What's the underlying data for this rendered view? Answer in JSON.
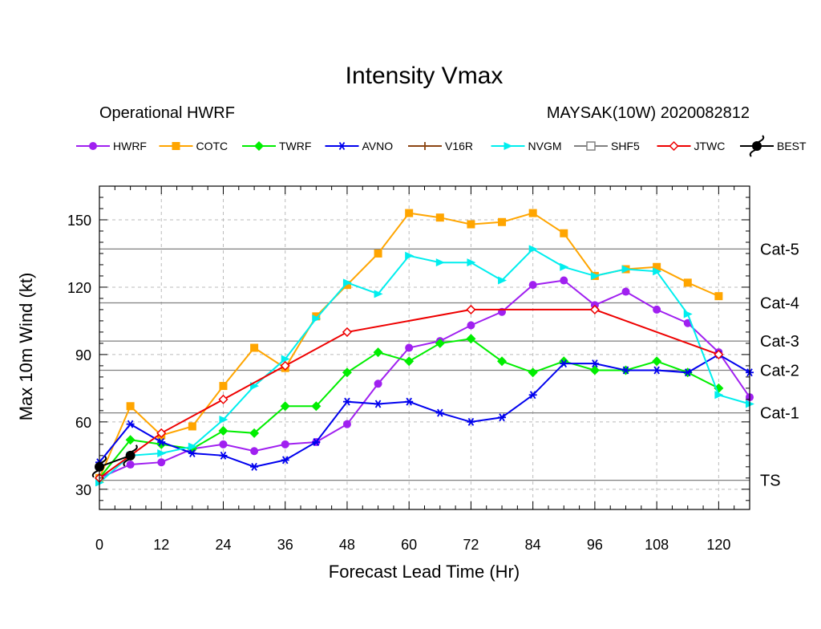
{
  "chart_data": {
    "type": "line",
    "title": "Intensity Vmax",
    "subtitle_left": "Operational HWRF",
    "subtitle_right": "MAYSAK(10W) 2020082812",
    "xlabel": "Forecast Lead Time (Hr)",
    "ylabel": "Max 10m Wind (kt)",
    "xlim": [
      0,
      126
    ],
    "ylim": [
      21,
      165
    ],
    "x_ticks": [
      0,
      12,
      24,
      36,
      48,
      60,
      72,
      84,
      96,
      108,
      120
    ],
    "y_ticks": [
      30,
      60,
      90,
      120,
      150
    ],
    "grid": true,
    "legend_position": "top",
    "categories": [
      {
        "label": "TS",
        "threshold": 34
      },
      {
        "label": "Cat-1",
        "threshold": 64
      },
      {
        "label": "Cat-2",
        "threshold": 83
      },
      {
        "label": "Cat-3",
        "threshold": 96
      },
      {
        "label": "Cat-4",
        "threshold": 113
      },
      {
        "label": "Cat-5",
        "threshold": 137
      }
    ],
    "series": [
      {
        "name": "HWRF",
        "color": "#a020f0",
        "marker": "circle",
        "x": [
          0,
          6,
          12,
          18,
          24,
          30,
          36,
          42,
          48,
          54,
          60,
          66,
          72,
          78,
          84,
          90,
          96,
          102,
          108,
          114,
          120,
          126
        ],
        "y": [
          35,
          41,
          42,
          48,
          50,
          47,
          50,
          51,
          59,
          77,
          93,
          96,
          103,
          109,
          121,
          123,
          112,
          118,
          110,
          104,
          91,
          71
        ]
      },
      {
        "name": "COTC",
        "color": "#ffa500",
        "marker": "square",
        "x": [
          0,
          6,
          12,
          18,
          24,
          30,
          36,
          42,
          48,
          54,
          60,
          66,
          72,
          78,
          84,
          90,
          96,
          102,
          108,
          114,
          120
        ],
        "y": [
          35,
          67,
          54,
          58,
          76,
          93,
          84,
          107,
          121,
          135,
          153,
          151,
          148,
          149,
          153,
          144,
          125,
          128,
          129,
          122,
          116
        ]
      },
      {
        "name": "TWRF",
        "color": "#00ee00",
        "marker": "diamond",
        "x": [
          0,
          6,
          12,
          18,
          24,
          30,
          36,
          42,
          48,
          54,
          60,
          66,
          72,
          78,
          84,
          90,
          96,
          102,
          108,
          114,
          120
        ],
        "y": [
          35,
          52,
          50,
          48,
          56,
          55,
          67,
          67,
          82,
          91,
          87,
          95,
          97,
          87,
          82,
          87,
          83,
          83,
          87,
          82,
          75
        ]
      },
      {
        "name": "AVNO",
        "color": "#0000ee",
        "marker": "asterisk",
        "x": [
          0,
          6,
          12,
          18,
          24,
          30,
          36,
          42,
          48,
          54,
          60,
          66,
          72,
          78,
          84,
          90,
          96,
          102,
          108,
          114,
          120,
          126
        ],
        "y": [
          42,
          59,
          51,
          46,
          45,
          40,
          43,
          51,
          69,
          68,
          69,
          64,
          60,
          62,
          72,
          86,
          86,
          83,
          83,
          82,
          90,
          82
        ]
      },
      {
        "name": "V16R",
        "color": "#8b4513",
        "marker": "plus",
        "x": [],
        "y": []
      },
      {
        "name": "NVGM",
        "color": "#00eeee",
        "marker": "triangle",
        "x": [
          0,
          6,
          12,
          18,
          24,
          30,
          36,
          42,
          48,
          54,
          60,
          66,
          72,
          78,
          84,
          90,
          96,
          102,
          108,
          114,
          120,
          126
        ],
        "y": [
          33,
          45,
          46,
          49,
          61,
          76,
          88,
          106,
          122,
          117,
          134,
          131,
          131,
          123,
          137,
          129,
          125,
          128,
          127,
          108,
          72,
          68
        ]
      },
      {
        "name": "SHF5",
        "color": "#808080",
        "marker": "open-square",
        "x": [],
        "y": []
      },
      {
        "name": "JTWC",
        "color": "#ee0000",
        "marker": "open-diamond",
        "x": [
          0,
          12,
          24,
          36,
          48,
          72,
          96,
          120
        ],
        "y": [
          35,
          55,
          70,
          85,
          100,
          110,
          110,
          90
        ]
      },
      {
        "name": "BEST",
        "color": "#000000",
        "marker": "hurricane",
        "x": [
          0,
          6
        ],
        "y": [
          40,
          45
        ]
      }
    ]
  }
}
